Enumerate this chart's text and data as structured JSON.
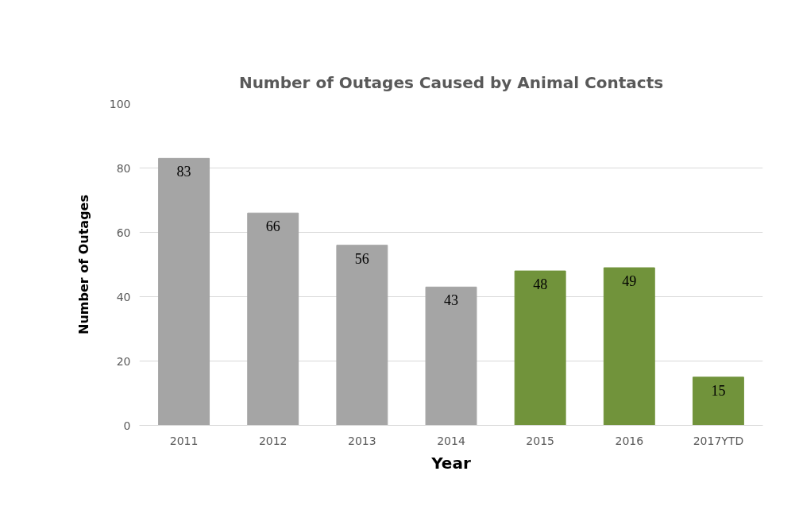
{
  "chart_data": {
    "type": "bar",
    "title": "Number of Outages Caused by Animal Contacts",
    "xlabel": "Year",
    "ylabel": "Number of Outages",
    "categories": [
      "2011",
      "2012",
      "2013",
      "2014",
      "2015",
      "2016",
      "2017YTD"
    ],
    "values": [
      83,
      66,
      56,
      43,
      48,
      49,
      15
    ],
    "colors": [
      "#a5a5a5",
      "#a5a5a5",
      "#a5a5a5",
      "#a5a5a5",
      "#71933b",
      "#71933b",
      "#71933b"
    ],
    "ylim": [
      0,
      100
    ],
    "yticks": [
      0,
      20,
      40,
      60,
      80,
      100
    ],
    "grid": "y",
    "data_labels": true
  }
}
